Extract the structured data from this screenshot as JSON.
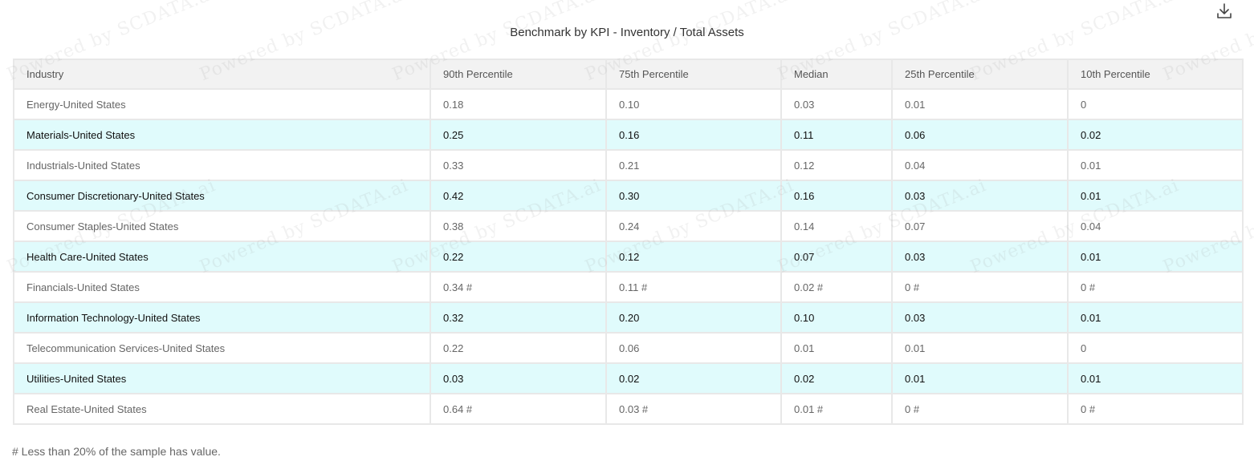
{
  "title": "Benchmark by KPI - Inventory / Total Assets",
  "icons": {
    "download": "download-icon"
  },
  "watermark": {
    "text": "Powered by SCDATA.ai"
  },
  "table": {
    "columns": [
      "Industry",
      "90th Percentile",
      "75th Percentile",
      "Median",
      "25th Percentile",
      "10th Percentile"
    ],
    "rows": [
      [
        "Energy-United States",
        "0.18",
        "0.10",
        "0.03",
        "0.01",
        "0"
      ],
      [
        "Materials-United States",
        "0.25",
        "0.16",
        "0.11",
        "0.06",
        "0.02"
      ],
      [
        "Industrials-United States",
        "0.33",
        "0.21",
        "0.12",
        "0.04",
        "0.01"
      ],
      [
        "Consumer Discretionary-United States",
        "0.42",
        "0.30",
        "0.16",
        "0.03",
        "0.01"
      ],
      [
        "Consumer Staples-United States",
        "0.38",
        "0.24",
        "0.14",
        "0.07",
        "0.04"
      ],
      [
        "Health Care-United States",
        "0.22",
        "0.12",
        "0.07",
        "0.03",
        "0.01"
      ],
      [
        "Financials-United States",
        "0.34 #",
        "0.11 #",
        "0.02 #",
        "0 #",
        "0 #"
      ],
      [
        "Information Technology-United States",
        "0.32",
        "0.20",
        "0.10",
        "0.03",
        "0.01"
      ],
      [
        "Telecommunication Services-United States",
        "0.22",
        "0.06",
        "0.01",
        "0.01",
        "0"
      ],
      [
        "Utilities-United States",
        "0.03",
        "0.02",
        "0.02",
        "0.01",
        "0.01"
      ],
      [
        "Real Estate-United States",
        "0.64 #",
        "0.03 #",
        "0.01 #",
        "0 #",
        "0 #"
      ]
    ]
  },
  "footnote": "# Less than 20% of the sample has value.",
  "colors": {
    "header_bg": "#f2f2f2",
    "row_alt_bg": "#e0fbfc",
    "border": "#e8e8e8"
  }
}
